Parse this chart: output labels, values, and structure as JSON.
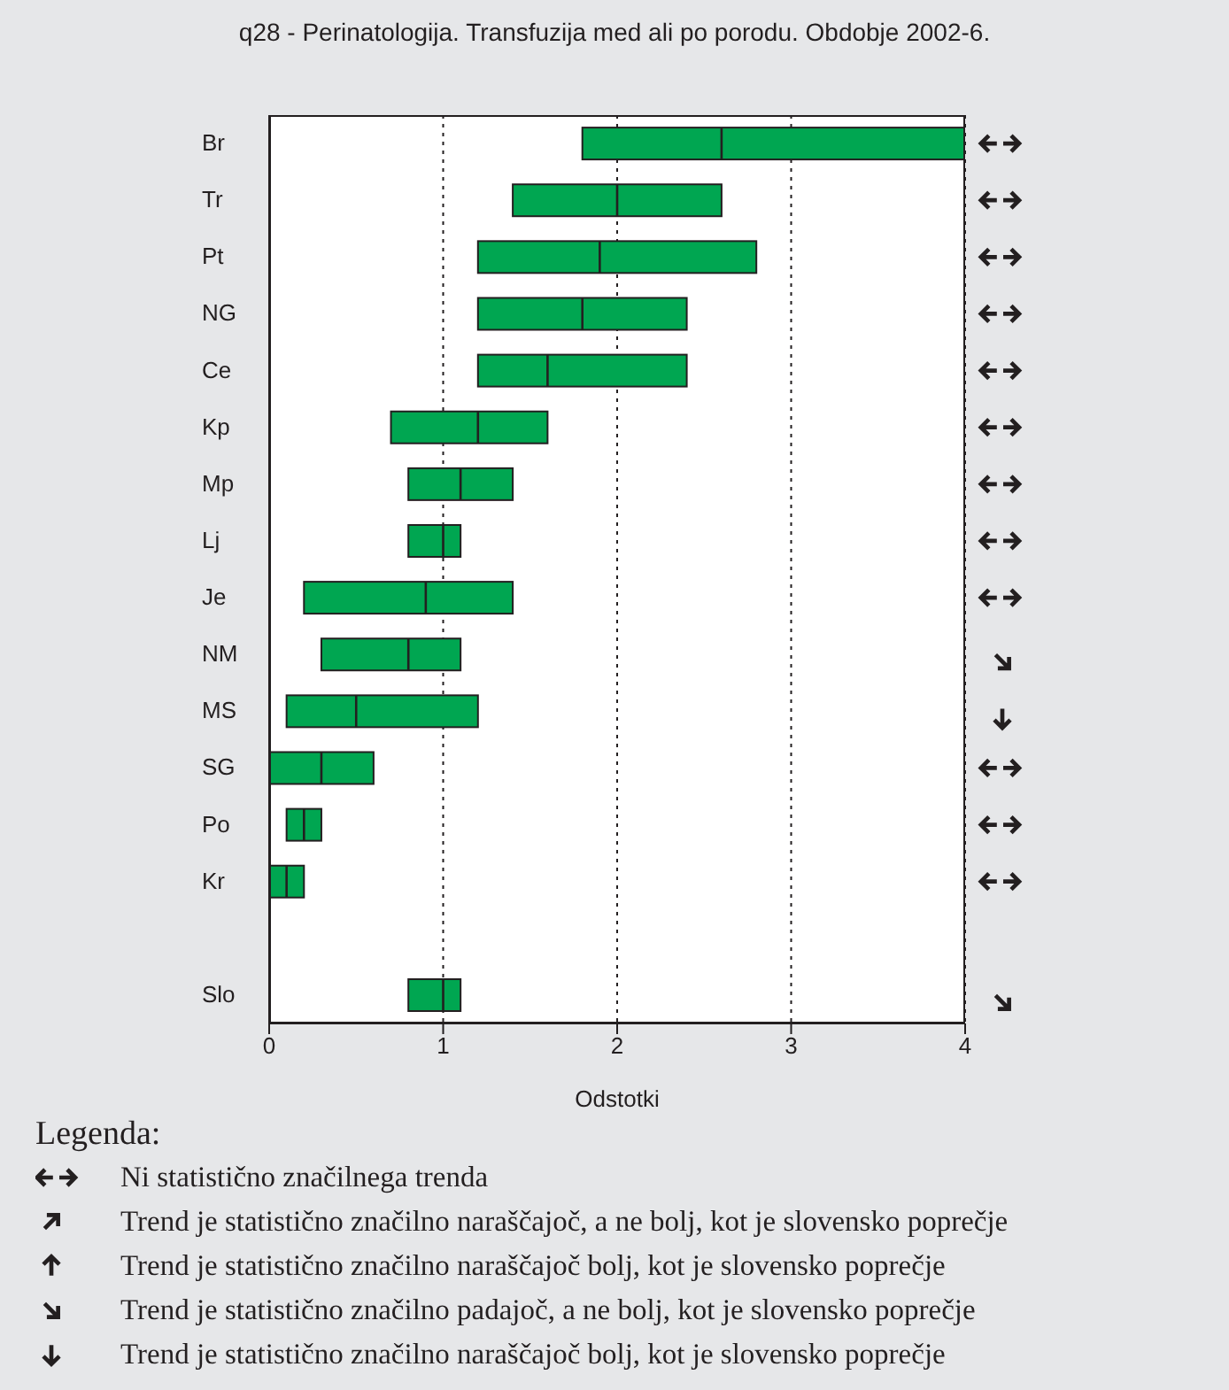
{
  "chart_data": {
    "type": "box",
    "orientation": "horizontal",
    "title": "q28 - Perinatologija. Transfuzija med ali po porodu. Obdobje 2002-6.",
    "xlabel": "Odstotki",
    "categories": [
      "Br",
      "Tr",
      "Pt",
      "NG",
      "Ce",
      "Kp",
      "Mp",
      "Lj",
      "Je",
      "NM",
      "MS",
      "SG",
      "Po",
      "Kr",
      null,
      "Slo"
    ],
    "color": "#00a651",
    "boxes": [
      {
        "low": 1.8,
        "q1": 1.8,
        "median": 2.6,
        "q3": 4.0,
        "high": 4.0
      },
      {
        "low": 1.4,
        "q1": 1.4,
        "median": 2.0,
        "q3": 2.6,
        "high": 2.6
      },
      {
        "low": 1.2,
        "q1": 1.2,
        "median": 1.9,
        "q3": 2.8,
        "high": 2.8
      },
      {
        "low": 1.2,
        "q1": 1.2,
        "median": 1.8,
        "q3": 2.4,
        "high": 2.4
      },
      {
        "low": 1.2,
        "q1": 1.2,
        "median": 1.6,
        "q3": 2.4,
        "high": 2.4
      },
      {
        "low": 0.7,
        "q1": 0.7,
        "median": 1.2,
        "q3": 1.6,
        "high": 1.6
      },
      {
        "low": 0.8,
        "q1": 0.8,
        "median": 1.1,
        "q3": 1.4,
        "high": 1.4
      },
      {
        "low": 0.8,
        "q1": 0.8,
        "median": 1.0,
        "q3": 1.1,
        "high": 1.1
      },
      {
        "low": 0.2,
        "q1": 0.2,
        "median": 0.9,
        "q3": 1.4,
        "high": 1.4
      },
      {
        "low": 0.3,
        "q1": 0.3,
        "median": 0.8,
        "q3": 1.1,
        "high": 1.1
      },
      {
        "low": 0.1,
        "q1": 0.1,
        "median": 0.5,
        "q3": 1.2,
        "high": 1.2
      },
      {
        "low": 0.0,
        "q1": 0.0,
        "median": 0.3,
        "q3": 0.6,
        "high": 0.6
      },
      {
        "low": 0.1,
        "q1": 0.1,
        "median": 0.2,
        "q3": 0.3,
        "high": 0.3
      },
      {
        "low": 0.0,
        "q1": 0.0,
        "median": 0.1,
        "q3": 0.2,
        "high": 0.2
      },
      null,
      {
        "low": 0.8,
        "q1": 0.8,
        "median": 1.0,
        "q3": 1.1,
        "high": 1.1
      }
    ],
    "xlim": [
      0,
      4
    ],
    "xticks": [
      0,
      1,
      2,
      3,
      4
    ],
    "grid": "x",
    "annotations": [
      "Legenda:",
      "Ni statistično značilnega trenda",
      "Trend je statistično značilno naraščajoč, a ne bolj, kot je slovensko poprečje",
      "Trend je statistično značilno naraščajoč bolj, kot je slovensko poprečje",
      "Trend je statistično značilno padajoč, a ne bolj, kot je slovensko poprečje",
      "Trend je statistično značilno naraščajoč bolj, kot je slovensko poprečje"
    ]
  }
}
